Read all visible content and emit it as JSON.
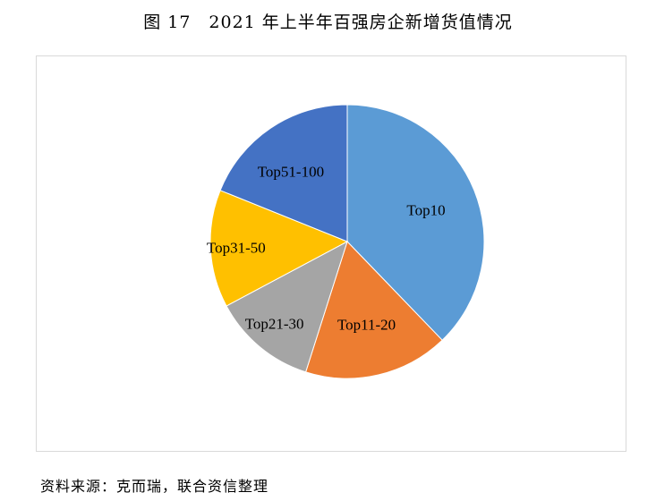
{
  "title": "图 17　2021 年上半年百强房企新增货值情况",
  "source": "资料来源：克而瑞，联合资信整理",
  "chart_data": {
    "type": "pie",
    "title": "",
    "start_angle": "12 o'clock, clockwise",
    "legend": "none (data labels on slices)",
    "categories": [
      "Top10",
      "Top11-20",
      "Top21-30",
      "Top31-50",
      "Top51-100"
    ],
    "values": [
      37.8,
      17.1,
      12.3,
      13.9,
      18.9
    ],
    "colors": [
      "#5B9BD5",
      "#ED7D31",
      "#A5A5A5",
      "#FFC000",
      "#4472C4"
    ]
  }
}
